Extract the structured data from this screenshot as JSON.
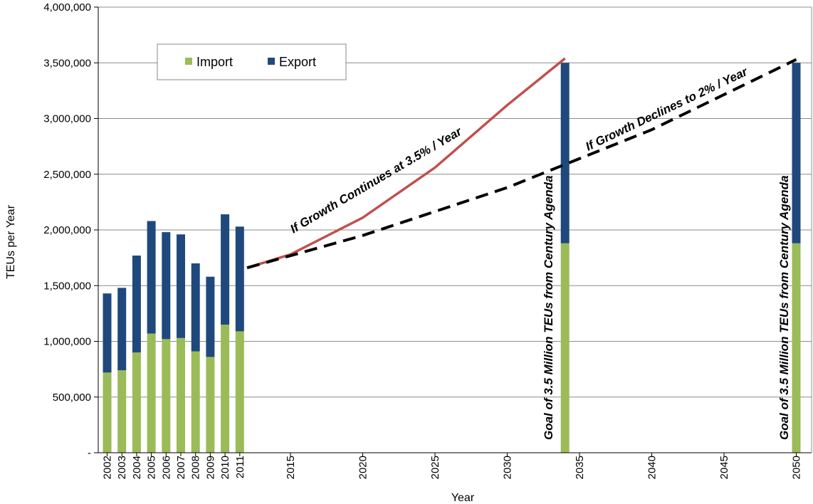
{
  "chart_data": {
    "type": "bar",
    "xlabel": "Year",
    "ylabel": "TEUs per Year",
    "ylim": [
      0,
      4000000
    ],
    "y_ticks": [
      0,
      500000,
      1000000,
      1500000,
      2000000,
      2500000,
      3000000,
      3500000,
      4000000
    ],
    "y_tick_labels": [
      "-",
      "500,000",
      "1,000,000",
      "1,500,000",
      "2,000,000",
      "2,500,000",
      "3,000,000",
      "3,500,000",
      "4,000,000"
    ],
    "grid": true,
    "legend_position": "top-left",
    "categories": [
      "2002",
      "2003",
      "2004",
      "2005",
      "2006",
      "2007",
      "2008",
      "2009",
      "2010",
      "2011",
      "2034",
      "2050"
    ],
    "x_tick_labels": [
      "2002",
      "2003",
      "2004",
      "2005",
      "2006",
      "2007",
      "2008",
      "2009",
      "2010",
      "2011",
      "2015",
      "2020",
      "2025",
      "2030",
      "2035",
      "2040",
      "2045",
      "2050"
    ],
    "series": [
      {
        "name": "Import",
        "color": "#9bbb59",
        "values": [
          720000,
          740000,
          900000,
          1070000,
          1020000,
          1030000,
          910000,
          860000,
          1150000,
          1090000,
          1880000,
          1880000
        ]
      },
      {
        "name": "Export",
        "color": "#1f497d",
        "values": [
          710000,
          740000,
          870000,
          1010000,
          960000,
          930000,
          790000,
          720000,
          990000,
          940000,
          1620000,
          1620000
        ]
      }
    ],
    "projections": [
      {
        "label": "If Growth Continues at 3.5% / Year",
        "color": "#c0504d",
        "style": "solid",
        "points": [
          [
            2012,
            1660000
          ],
          [
            2015,
            1780000
          ],
          [
            2020,
            2110000
          ],
          [
            2025,
            2560000
          ],
          [
            2030,
            3120000
          ],
          [
            2034,
            3540000
          ]
        ]
      },
      {
        "label": "If Growth Declines to 2% / Year",
        "color": "#000000",
        "style": "dashed",
        "points": [
          [
            2012,
            1660000
          ],
          [
            2020,
            1950000
          ],
          [
            2030,
            2380000
          ],
          [
            2040,
            2900000
          ],
          [
            2050,
            3530000
          ]
        ]
      }
    ],
    "annotations": [
      "Goal of 3.5 Million TEUs from Century Agenda",
      "Goal of 3.5 Million TEUs from Century Agenda"
    ]
  }
}
